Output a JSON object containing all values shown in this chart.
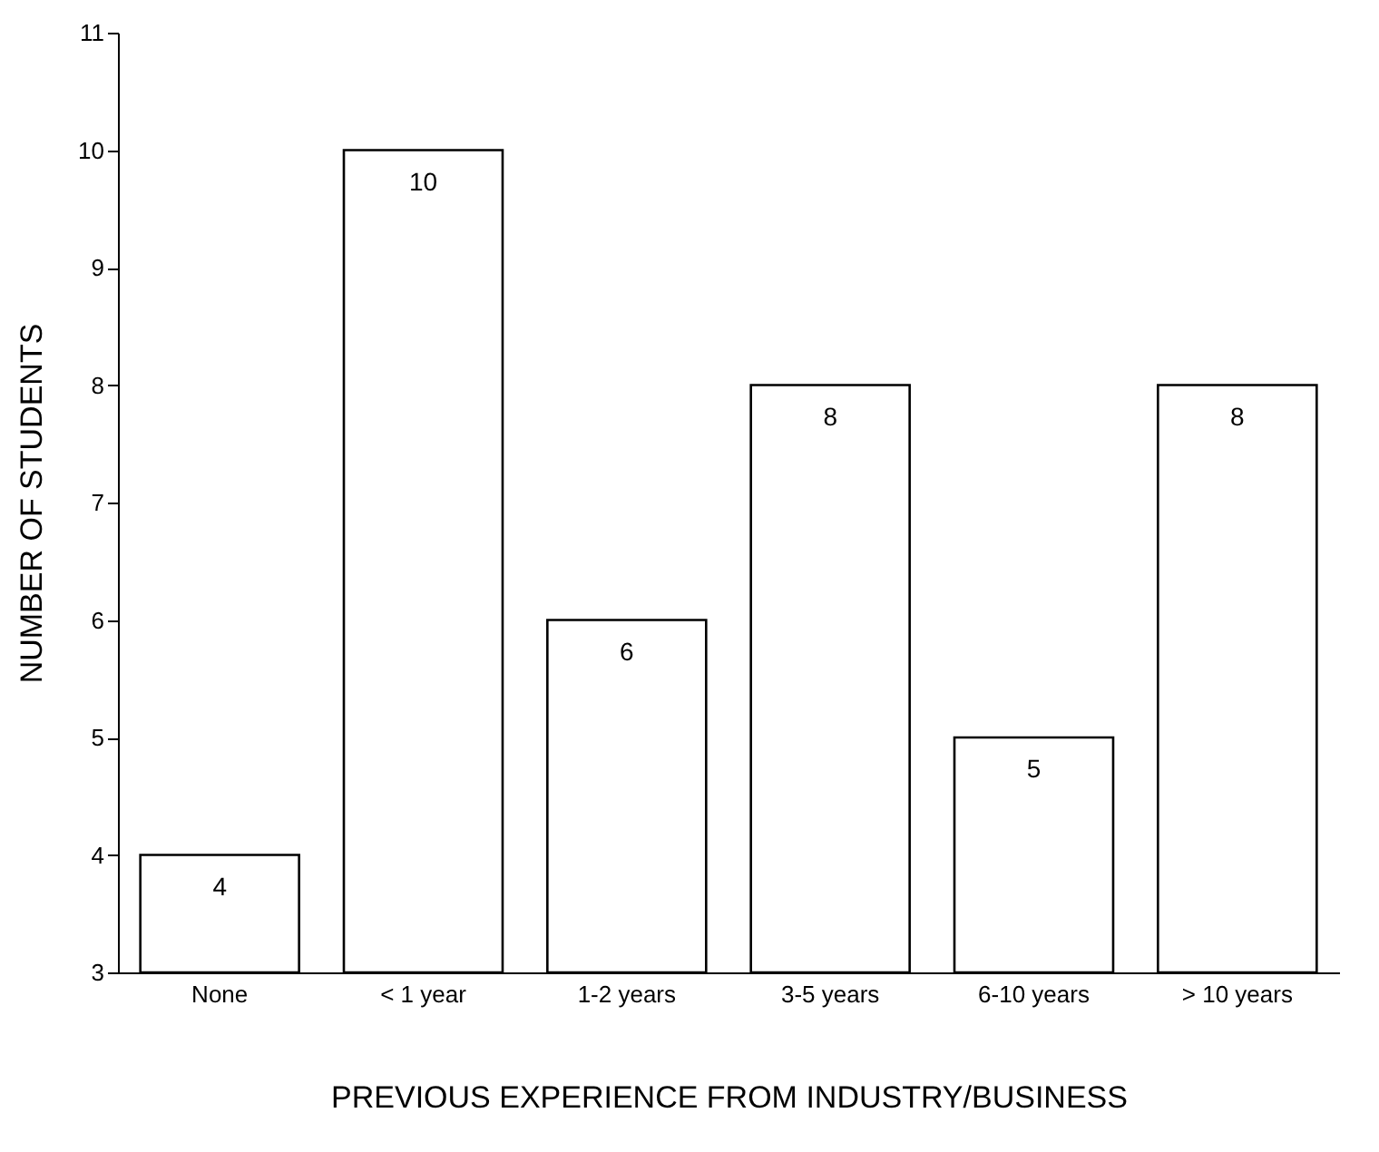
{
  "chart_data": {
    "type": "bar",
    "categories": [
      "None",
      "< 1 year",
      "1-2 years",
      "3-5 years",
      "6-10 years",
      "> 10 years"
    ],
    "values": [
      4,
      10,
      6,
      8,
      5,
      8
    ],
    "color": "#ffffff",
    "xlabel": "PREVIOUS EXPERIENCE FROM INDUSTRY/BUSINESS",
    "ylabel": "NUMBER OF STUDENTS",
    "ylim": [
      3,
      11
    ],
    "yticks": [
      3,
      4,
      5,
      6,
      7,
      8,
      9,
      10,
      11
    ],
    "data_labels": true,
    "grid": false
  }
}
